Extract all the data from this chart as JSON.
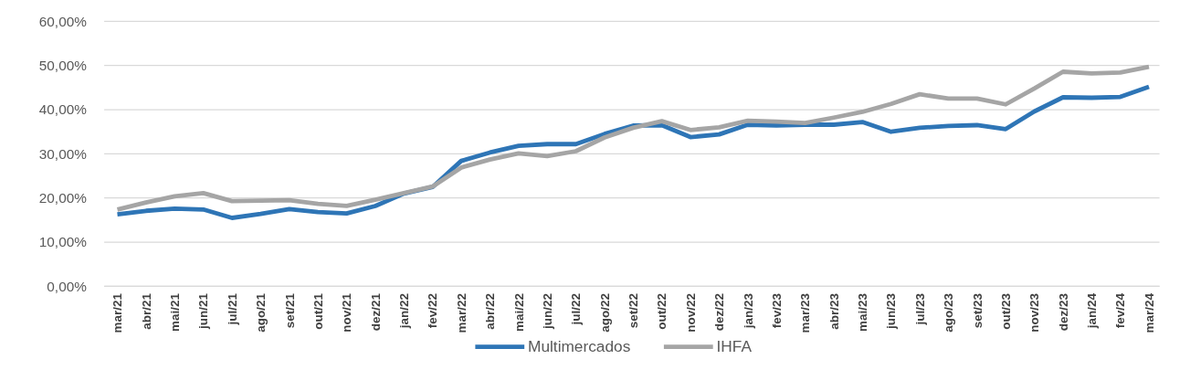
{
  "chart_data": {
    "type": "line",
    "categories": [
      "mar/21",
      "abr/21",
      "mai/21",
      "jun/21",
      "jul/21",
      "ago/21",
      "set/21",
      "out/21",
      "nov/21",
      "dez/21",
      "jan/22",
      "fev/22",
      "mar/22",
      "abr/22",
      "mai/22",
      "jun/22",
      "jul/22",
      "ago/22",
      "set/22",
      "out/22",
      "nov/22",
      "dez/22",
      "jan/23",
      "fev/23",
      "mar/23",
      "abr/23",
      "mai/23",
      "jun/23",
      "jul/23",
      "ago/23",
      "set/23",
      "out/23",
      "nov/23",
      "dez/23",
      "jan/24",
      "fev/24",
      "mar/24"
    ],
    "series": [
      {
        "name": "Multimercados",
        "color": "#2e75b6",
        "values": [
          16.3,
          17.1,
          17.6,
          17.4,
          15.5,
          16.4,
          17.5,
          16.8,
          16.5,
          18.2,
          21.0,
          22.5,
          28.4,
          30.3,
          31.8,
          32.2,
          32.2,
          34.5,
          36.4,
          36.5,
          33.8,
          34.4,
          36.6,
          36.4,
          36.6,
          36.6,
          37.2,
          35.0,
          35.9,
          36.3,
          36.5,
          35.6,
          39.6,
          42.8,
          42.7,
          42.9,
          45.2
        ]
      },
      {
        "name": "IHFA",
        "color": "#a5a5a5",
        "values": [
          17.4,
          19.0,
          20.4,
          21.1,
          19.3,
          19.4,
          19.5,
          18.7,
          18.2,
          19.6,
          21.1,
          22.6,
          26.9,
          28.7,
          30.1,
          29.5,
          30.6,
          33.7,
          35.9,
          37.4,
          35.4,
          36.0,
          37.5,
          37.3,
          37.0,
          38.2,
          39.5,
          41.3,
          43.5,
          42.5,
          42.5,
          41.2,
          44.8,
          48.6,
          48.2,
          48.4,
          49.7
        ]
      }
    ],
    "ylim": [
      0,
      60
    ],
    "yticks": [
      {
        "value": 0,
        "label": "0,00%"
      },
      {
        "value": 10,
        "label": "10,00%"
      },
      {
        "value": 20,
        "label": "20,00%"
      },
      {
        "value": 30,
        "label": "30,00%"
      },
      {
        "value": 40,
        "label": "40,00%"
      },
      {
        "value": 50,
        "label": "50,00%"
      },
      {
        "value": 60,
        "label": "60,00%"
      }
    ],
    "grid": "y",
    "legend": "bottom",
    "marker": "none",
    "line_style": "solid"
  }
}
